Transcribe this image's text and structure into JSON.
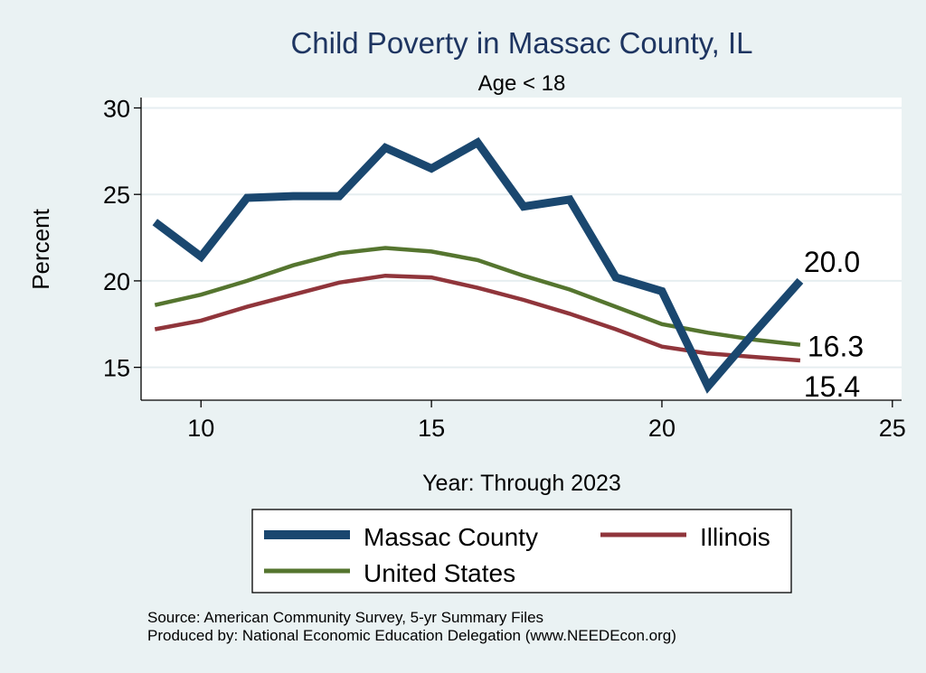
{
  "chart_data": {
    "type": "line",
    "title": "Child Poverty in Massac County, IL",
    "subtitle": "Age < 18",
    "xlabel": "Year: Through 2023",
    "ylabel": "Percent",
    "xlim": [
      8.7,
      25.2
    ],
    "ylim": [
      13.1,
      30.6
    ],
    "xticks": [
      10,
      15,
      20,
      25
    ],
    "yticks": [
      15,
      20,
      25,
      30
    ],
    "grid": true,
    "legend_position": "bottom",
    "series": [
      {
        "name": "Massac County",
        "color": "#1a476f",
        "x": [
          9,
          10,
          11,
          12,
          13,
          14,
          15,
          16,
          17,
          18,
          19,
          20,
          21,
          22,
          23
        ],
        "values": [
          23.4,
          21.4,
          24.8,
          24.9,
          24.9,
          27.7,
          26.5,
          28.0,
          24.3,
          24.7,
          20.2,
          19.4,
          13.9,
          17.0,
          20.0
        ],
        "end_label": "20.0"
      },
      {
        "name": "Illinois",
        "color": "#90353b",
        "x": [
          9,
          10,
          11,
          12,
          13,
          14,
          15,
          16,
          17,
          18,
          19,
          20,
          21,
          22,
          23
        ],
        "values": [
          17.2,
          17.7,
          18.5,
          19.2,
          19.9,
          20.3,
          20.2,
          19.6,
          18.9,
          18.1,
          17.2,
          16.2,
          15.8,
          15.6,
          15.4
        ],
        "end_label": "15.4"
      },
      {
        "name": "United States",
        "color": "#55752f",
        "x": [
          9,
          10,
          11,
          12,
          13,
          14,
          15,
          16,
          17,
          18,
          19,
          20,
          21,
          22,
          23
        ],
        "values": [
          18.6,
          19.2,
          20.0,
          20.9,
          21.6,
          21.9,
          21.7,
          21.2,
          20.3,
          19.5,
          18.5,
          17.5,
          17.0,
          16.6,
          16.3
        ],
        "end_label": "16.3"
      }
    ]
  },
  "footer": {
    "source": "Source: American Community Survey, 5-yr Summary Files",
    "produced_by": "Produced by: National Economic Education Delegation (www.NEEDEcon.org)"
  }
}
